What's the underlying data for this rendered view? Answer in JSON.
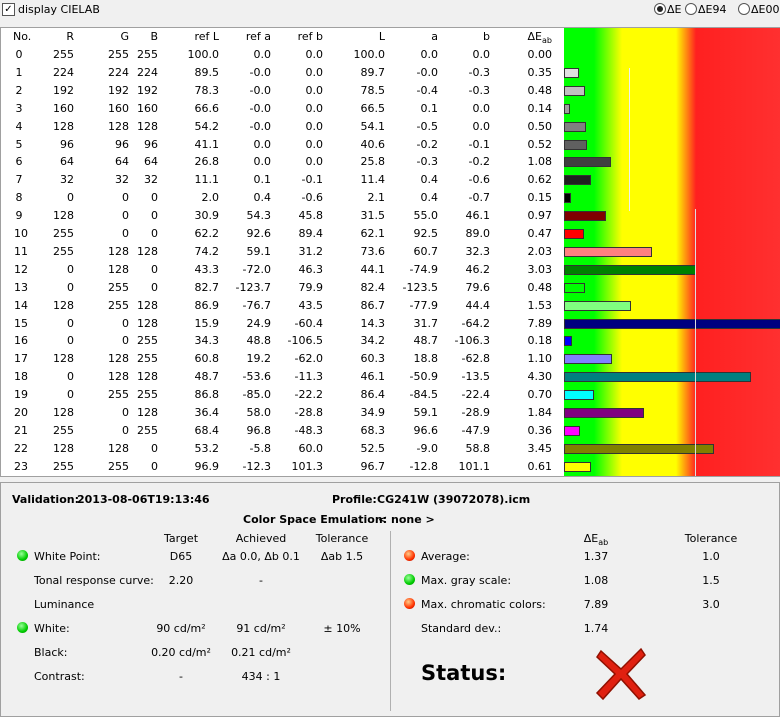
{
  "toolbar": {
    "checkbox_label": "display CIELAB",
    "checked": true,
    "options": [
      "ΔE",
      "ΔE94",
      "ΔE00"
    ],
    "selected": 0
  },
  "table": {
    "columns": [
      "No.",
      "R",
      "G",
      "B",
      "ref L",
      "ref a",
      "ref b",
      "L",
      "a",
      "b",
      "ΔE"
    ],
    "delta_sub": "ab",
    "rows": [
      [
        "0",
        "255",
        "255",
        "255",
        "100.0",
        "0.0",
        "0.0",
        "100.0",
        "0.0",
        "0.0",
        "0.00"
      ],
      [
        "1",
        "224",
        "224",
        "224",
        "89.5",
        "-0.0",
        "0.0",
        "89.7",
        "-0.0",
        "-0.3",
        "0.35"
      ],
      [
        "2",
        "192",
        "192",
        "192",
        "78.3",
        "-0.0",
        "0.0",
        "78.5",
        "-0.4",
        "-0.3",
        "0.48"
      ],
      [
        "3",
        "160",
        "160",
        "160",
        "66.6",
        "-0.0",
        "0.0",
        "66.5",
        "0.1",
        "0.0",
        "0.14"
      ],
      [
        "4",
        "128",
        "128",
        "128",
        "54.2",
        "-0.0",
        "0.0",
        "54.1",
        "-0.5",
        "0.0",
        "0.50"
      ],
      [
        "5",
        "96",
        "96",
        "96",
        "41.1",
        "0.0",
        "0.0",
        "40.6",
        "-0.2",
        "-0.1",
        "0.52"
      ],
      [
        "6",
        "64",
        "64",
        "64",
        "26.8",
        "0.0",
        "0.0",
        "25.8",
        "-0.3",
        "-0.2",
        "1.08"
      ],
      [
        "7",
        "32",
        "32",
        "32",
        "11.1",
        "0.1",
        "-0.1",
        "11.4",
        "0.4",
        "-0.6",
        "0.62"
      ],
      [
        "8",
        "0",
        "0",
        "0",
        "2.0",
        "0.4",
        "-0.6",
        "2.1",
        "0.4",
        "-0.7",
        "0.15"
      ],
      [
        "9",
        "128",
        "0",
        "0",
        "30.9",
        "54.3",
        "45.8",
        "31.5",
        "55.0",
        "46.1",
        "0.97"
      ],
      [
        "10",
        "255",
        "0",
        "0",
        "62.2",
        "92.6",
        "89.4",
        "62.1",
        "92.5",
        "89.0",
        "0.47"
      ],
      [
        "11",
        "255",
        "128",
        "128",
        "74.2",
        "59.1",
        "31.2",
        "73.6",
        "60.7",
        "32.3",
        "2.03"
      ],
      [
        "12",
        "0",
        "128",
        "0",
        "43.3",
        "-72.0",
        "46.3",
        "44.1",
        "-74.9",
        "46.2",
        "3.03"
      ],
      [
        "13",
        "0",
        "255",
        "0",
        "82.7",
        "-123.7",
        "79.9",
        "82.4",
        "-123.5",
        "79.6",
        "0.48"
      ],
      [
        "14",
        "128",
        "255",
        "128",
        "86.9",
        "-76.7",
        "43.5",
        "86.7",
        "-77.9",
        "44.4",
        "1.53"
      ],
      [
        "15",
        "0",
        "0",
        "128",
        "15.9",
        "24.9",
        "-60.4",
        "14.3",
        "31.7",
        "-64.2",
        "7.89"
      ],
      [
        "16",
        "0",
        "0",
        "255",
        "34.3",
        "48.8",
        "-106.5",
        "34.2",
        "48.7",
        "-106.3",
        "0.18"
      ],
      [
        "17",
        "128",
        "128",
        "255",
        "60.8",
        "19.2",
        "-62.0",
        "60.3",
        "18.8",
        "-62.8",
        "1.10"
      ],
      [
        "18",
        "0",
        "128",
        "128",
        "48.7",
        "-53.6",
        "-11.3",
        "46.1",
        "-50.9",
        "-13.5",
        "4.30"
      ],
      [
        "19",
        "0",
        "255",
        "255",
        "86.8",
        "-85.0",
        "-22.2",
        "86.4",
        "-84.5",
        "-22.4",
        "0.70"
      ],
      [
        "20",
        "128",
        "0",
        "128",
        "36.4",
        "58.0",
        "-28.8",
        "34.9",
        "59.1",
        "-28.9",
        "1.84"
      ],
      [
        "21",
        "255",
        "0",
        "255",
        "68.4",
        "96.8",
        "-48.3",
        "68.3",
        "96.6",
        "-47.9",
        "0.36"
      ],
      [
        "22",
        "128",
        "128",
        "0",
        "53.2",
        "-5.8",
        "60.0",
        "52.5",
        "-9.0",
        "58.8",
        "3.45"
      ],
      [
        "23",
        "255",
        "255",
        "0",
        "96.9",
        "-12.3",
        "101.3",
        "96.7",
        "-12.8",
        "101.1",
        "0.61"
      ]
    ]
  },
  "summary": {
    "validation_label": "Validation:",
    "validation": "2013-08-06T19:13:46",
    "profile_label": "Profile:",
    "profile": "CG241W (39072078).icm",
    "emulation_label": "Color Space Emulation:",
    "emulation": "< none >",
    "left_headers": [
      "Target",
      "Achieved",
      "Tolerance"
    ],
    "left_rows": [
      {
        "label": "White Point:",
        "status": "green",
        "cells": [
          "D65",
          "Δa 0.0, Δb 0.1",
          "Δab 1.5"
        ]
      },
      {
        "label": "Tonal response curve:",
        "cells": [
          "2.20",
          "-"
        ]
      },
      {
        "label": "Luminance",
        "cells": []
      },
      {
        "label": "White:",
        "status": "green",
        "cells": [
          "90 cd/m²",
          "91 cd/m²",
          "± 10%"
        ]
      },
      {
        "label": "Black:",
        "cells": [
          "0.20 cd/m²",
          "0.21 cd/m²"
        ]
      },
      {
        "label": "Contrast:",
        "cells": [
          "-",
          "434 : 1"
        ]
      }
    ],
    "right_headers": [
      "ΔE",
      "Tolerance"
    ],
    "right_header_sub": "ab",
    "right_rows": [
      {
        "label": "Average:",
        "status": "red",
        "cells": [
          "1.37",
          "1.0"
        ]
      },
      {
        "label": "Max. gray scale:",
        "status": "green",
        "cells": [
          "1.08",
          "1.5"
        ]
      },
      {
        "label": "Max. chromatic colors:",
        "status": "red",
        "cells": [
          "7.89",
          "3.0"
        ]
      },
      {
        "label": "Standard dev.:",
        "cells": [
          "1.74"
        ]
      }
    ],
    "status_label": "Status:",
    "status": "fail"
  }
}
